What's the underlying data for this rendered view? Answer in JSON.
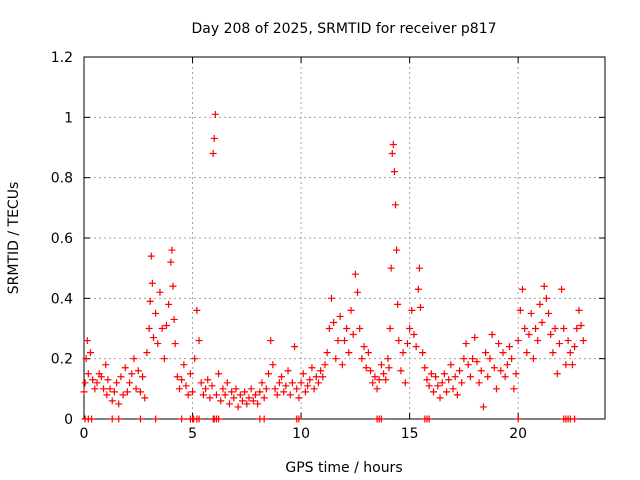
{
  "chart_data": {
    "type": "scatter",
    "title": "Day 208 of 2025, SRMTID for receiver p817",
    "xlabel": "GPS time / hours",
    "ylabel": "SRMTID / TECUs",
    "xlim": [
      0,
      24
    ],
    "ylim": [
      0,
      1.2
    ],
    "xticks": [
      0,
      5,
      10,
      15,
      20
    ],
    "yticks": [
      0,
      0.2,
      0.4,
      0.6,
      0.8,
      1,
      1.2
    ],
    "xtick_labels": [
      "0",
      "5",
      "10",
      "15",
      "20"
    ],
    "ytick_labels": [
      "0",
      "0.2",
      "0.4",
      "0.6",
      "0.8",
      "1",
      "1.2"
    ],
    "grid": true,
    "marker": "+",
    "series": [
      {
        "name": "SRMTID",
        "color": "#ff0000",
        "points": [
          [
            0.0,
            0.09
          ],
          [
            0.05,
            0.12
          ],
          [
            0.1,
            0.2
          ],
          [
            0.15,
            0.26
          ],
          [
            0.2,
            0.15
          ],
          [
            0.3,
            0.22
          ],
          [
            0.4,
            0.13
          ],
          [
            0.5,
            0.1
          ],
          [
            0.6,
            0.12
          ],
          [
            0.7,
            0.15
          ],
          [
            0.8,
            0.14
          ],
          [
            0.9,
            0.1
          ],
          [
            1.0,
            0.18
          ],
          [
            1.05,
            0.08
          ],
          [
            1.1,
            0.13
          ],
          [
            1.2,
            0.1
          ],
          [
            1.3,
            0.06
          ],
          [
            1.4,
            0.09
          ],
          [
            1.5,
            0.12
          ],
          [
            1.6,
            0.05
          ],
          [
            1.7,
            0.14
          ],
          [
            1.8,
            0.08
          ],
          [
            1.9,
            0.17
          ],
          [
            2.0,
            0.09
          ],
          [
            2.1,
            0.12
          ],
          [
            2.2,
            0.15
          ],
          [
            2.3,
            0.2
          ],
          [
            2.4,
            0.1
          ],
          [
            2.5,
            0.16
          ],
          [
            2.6,
            0.09
          ],
          [
            2.7,
            0.14
          ],
          [
            2.8,
            0.07
          ],
          [
            2.9,
            0.22
          ],
          [
            3.0,
            0.3
          ],
          [
            3.05,
            0.39
          ],
          [
            3.1,
            0.54
          ],
          [
            3.15,
            0.45
          ],
          [
            3.2,
            0.27
          ],
          [
            3.3,
            0.35
          ],
          [
            3.4,
            0.25
          ],
          [
            3.5,
            0.42
          ],
          [
            3.6,
            0.3
          ],
          [
            3.7,
            0.2
          ],
          [
            3.8,
            0.31
          ],
          [
            3.9,
            0.38
          ],
          [
            4.0,
            0.52
          ],
          [
            4.05,
            0.56
          ],
          [
            4.1,
            0.44
          ],
          [
            4.15,
            0.33
          ],
          [
            4.2,
            0.25
          ],
          [
            4.3,
            0.14
          ],
          [
            4.4,
            0.1
          ],
          [
            4.5,
            0.13
          ],
          [
            4.6,
            0.18
          ],
          [
            4.7,
            0.11
          ],
          [
            4.8,
            0.08
          ],
          [
            4.9,
            0.15
          ],
          [
            5.0,
            0.09
          ],
          [
            5.1,
            0.2
          ],
          [
            5.2,
            0.36
          ],
          [
            5.3,
            0.26
          ],
          [
            5.4,
            0.12
          ],
          [
            5.5,
            0.08
          ],
          [
            5.6,
            0.1
          ],
          [
            5.7,
            0.13
          ],
          [
            5.8,
            0.07
          ],
          [
            5.9,
            0.11
          ],
          [
            5.95,
            0.88
          ],
          [
            6.0,
            0.93
          ],
          [
            6.05,
            1.01
          ],
          [
            6.1,
            0.08
          ],
          [
            6.2,
            0.15
          ],
          [
            6.3,
            0.06
          ],
          [
            6.4,
            0.1
          ],
          [
            6.5,
            0.08
          ],
          [
            6.6,
            0.12
          ],
          [
            6.7,
            0.05
          ],
          [
            6.8,
            0.09
          ],
          [
            6.9,
            0.07
          ],
          [
            7.0,
            0.1
          ],
          [
            7.1,
            0.04
          ],
          [
            7.2,
            0.08
          ],
          [
            7.3,
            0.06
          ],
          [
            7.4,
            0.09
          ],
          [
            7.5,
            0.05
          ],
          [
            7.6,
            0.07
          ],
          [
            7.7,
            0.1
          ],
          [
            7.8,
            0.06
          ],
          [
            7.9,
            0.08
          ],
          [
            8.0,
            0.05
          ],
          [
            8.1,
            0.09
          ],
          [
            8.2,
            0.12
          ],
          [
            8.3,
            0.07
          ],
          [
            8.4,
            0.1
          ],
          [
            8.5,
            0.15
          ],
          [
            8.6,
            0.26
          ],
          [
            8.7,
            0.18
          ],
          [
            8.8,
            0.1
          ],
          [
            8.9,
            0.08
          ],
          [
            9.0,
            0.12
          ],
          [
            9.1,
            0.14
          ],
          [
            9.2,
            0.09
          ],
          [
            9.3,
            0.11
          ],
          [
            9.4,
            0.16
          ],
          [
            9.5,
            0.08
          ],
          [
            9.6,
            0.12
          ],
          [
            9.7,
            0.24
          ],
          [
            9.8,
            0.1
          ],
          [
            9.9,
            0.07
          ],
          [
            10.0,
            0.12
          ],
          [
            10.1,
            0.15
          ],
          [
            10.2,
            0.09
          ],
          [
            10.3,
            0.11
          ],
          [
            10.4,
            0.13
          ],
          [
            10.5,
            0.17
          ],
          [
            10.6,
            0.1
          ],
          [
            10.7,
            0.14
          ],
          [
            10.8,
            0.12
          ],
          [
            10.9,
            0.16
          ],
          [
            11.0,
            0.14
          ],
          [
            11.1,
            0.18
          ],
          [
            11.2,
            0.22
          ],
          [
            11.3,
            0.3
          ],
          [
            11.4,
            0.4
          ],
          [
            11.5,
            0.32
          ],
          [
            11.6,
            0.2
          ],
          [
            11.7,
            0.26
          ],
          [
            11.8,
            0.34
          ],
          [
            11.9,
            0.18
          ],
          [
            12.0,
            0.26
          ],
          [
            12.1,
            0.3
          ],
          [
            12.2,
            0.22
          ],
          [
            12.3,
            0.36
          ],
          [
            12.4,
            0.28
          ],
          [
            12.5,
            0.48
          ],
          [
            12.6,
            0.42
          ],
          [
            12.7,
            0.3
          ],
          [
            12.8,
            0.2
          ],
          [
            12.9,
            0.24
          ],
          [
            13.0,
            0.17
          ],
          [
            13.1,
            0.22
          ],
          [
            13.2,
            0.16
          ],
          [
            13.3,
            0.12
          ],
          [
            13.4,
            0.14
          ],
          [
            13.5,
            0.1
          ],
          [
            13.6,
            0.13
          ],
          [
            13.7,
            0.18
          ],
          [
            13.8,
            0.15
          ],
          [
            13.9,
            0.13
          ],
          [
            14.0,
            0.2
          ],
          [
            14.05,
            0.17
          ],
          [
            14.1,
            0.3
          ],
          [
            14.15,
            0.5
          ],
          [
            14.2,
            0.88
          ],
          [
            14.25,
            0.91
          ],
          [
            14.3,
            0.82
          ],
          [
            14.35,
            0.71
          ],
          [
            14.4,
            0.56
          ],
          [
            14.45,
            0.38
          ],
          [
            14.5,
            0.26
          ],
          [
            14.6,
            0.16
          ],
          [
            14.7,
            0.22
          ],
          [
            14.8,
            0.12
          ],
          [
            14.9,
            0.25
          ],
          [
            15.0,
            0.3
          ],
          [
            15.1,
            0.36
          ],
          [
            15.2,
            0.28
          ],
          [
            15.3,
            0.24
          ],
          [
            15.4,
            0.43
          ],
          [
            15.45,
            0.5
          ],
          [
            15.5,
            0.37
          ],
          [
            15.6,
            0.22
          ],
          [
            15.7,
            0.17
          ],
          [
            15.8,
            0.13
          ],
          [
            15.9,
            0.11
          ],
          [
            16.0,
            0.15
          ],
          [
            16.1,
            0.09
          ],
          [
            16.2,
            0.14
          ],
          [
            16.3,
            0.11
          ],
          [
            16.4,
            0.07
          ],
          [
            16.5,
            0.12
          ],
          [
            16.6,
            0.15
          ],
          [
            16.7,
            0.09
          ],
          [
            16.8,
            0.13
          ],
          [
            16.9,
            0.18
          ],
          [
            17.0,
            0.1
          ],
          [
            17.1,
            0.14
          ],
          [
            17.2,
            0.08
          ],
          [
            17.3,
            0.16
          ],
          [
            17.4,
            0.12
          ],
          [
            17.5,
            0.2
          ],
          [
            17.6,
            0.25
          ],
          [
            17.7,
            0.18
          ],
          [
            17.8,
            0.14
          ],
          [
            17.9,
            0.2
          ],
          [
            18.0,
            0.27
          ],
          [
            18.1,
            0.19
          ],
          [
            18.2,
            0.12
          ],
          [
            18.3,
            0.16
          ],
          [
            18.4,
            0.04
          ],
          [
            18.5,
            0.22
          ],
          [
            18.6,
            0.14
          ],
          [
            18.7,
            0.2
          ],
          [
            18.8,
            0.28
          ],
          [
            18.9,
            0.17
          ],
          [
            19.0,
            0.1
          ],
          [
            19.1,
            0.25
          ],
          [
            19.2,
            0.16
          ],
          [
            19.3,
            0.22
          ],
          [
            19.4,
            0.14
          ],
          [
            19.5,
            0.18
          ],
          [
            19.6,
            0.24
          ],
          [
            19.7,
            0.2
          ],
          [
            19.8,
            0.1
          ],
          [
            19.9,
            0.15
          ],
          [
            20.0,
            0.26
          ],
          [
            20.1,
            0.36
          ],
          [
            20.2,
            0.43
          ],
          [
            20.3,
            0.3
          ],
          [
            20.4,
            0.22
          ],
          [
            20.5,
            0.28
          ],
          [
            20.6,
            0.35
          ],
          [
            20.7,
            0.2
          ],
          [
            20.8,
            0.3
          ],
          [
            20.9,
            0.26
          ],
          [
            21.0,
            0.38
          ],
          [
            21.1,
            0.32
          ],
          [
            21.2,
            0.44
          ],
          [
            21.3,
            0.4
          ],
          [
            21.4,
            0.35
          ],
          [
            21.5,
            0.28
          ],
          [
            21.6,
            0.22
          ],
          [
            21.7,
            0.3
          ],
          [
            21.8,
            0.15
          ],
          [
            21.9,
            0.25
          ],
          [
            22.0,
            0.43
          ],
          [
            22.1,
            0.3
          ],
          [
            22.2,
            0.18
          ],
          [
            22.3,
            0.26
          ],
          [
            22.4,
            0.22
          ],
          [
            22.5,
            0.18
          ],
          [
            22.6,
            0.24
          ],
          [
            22.7,
            0.3
          ],
          [
            22.8,
            0.36
          ],
          [
            22.9,
            0.31
          ],
          [
            23.0,
            0.26
          ]
        ]
      },
      {
        "name": "SRMTID zero values",
        "color": "#ff0000",
        "points": [
          [
            0.05,
            0
          ],
          [
            0.2,
            0
          ],
          [
            0.35,
            0
          ],
          [
            1.3,
            0
          ],
          [
            1.6,
            0
          ],
          [
            2.6,
            0
          ],
          [
            3.3,
            0
          ],
          [
            4.5,
            0
          ],
          [
            4.9,
            0
          ],
          [
            5.0,
            0
          ],
          [
            5.05,
            0
          ],
          [
            5.2,
            0
          ],
          [
            5.3,
            0
          ],
          [
            5.95,
            0
          ],
          [
            6.0,
            0
          ],
          [
            6.1,
            0
          ],
          [
            6.2,
            0
          ],
          [
            8.1,
            0
          ],
          [
            8.3,
            0
          ],
          [
            9.8,
            0
          ],
          [
            9.9,
            0
          ],
          [
            13.5,
            0
          ],
          [
            13.6,
            0
          ],
          [
            13.7,
            0
          ],
          [
            15.7,
            0
          ],
          [
            15.8,
            0
          ],
          [
            15.9,
            0
          ],
          [
            20.0,
            0
          ],
          [
            22.1,
            0
          ],
          [
            22.2,
            0
          ],
          [
            22.3,
            0
          ],
          [
            22.4,
            0
          ],
          [
            22.6,
            0
          ]
        ]
      }
    ]
  }
}
